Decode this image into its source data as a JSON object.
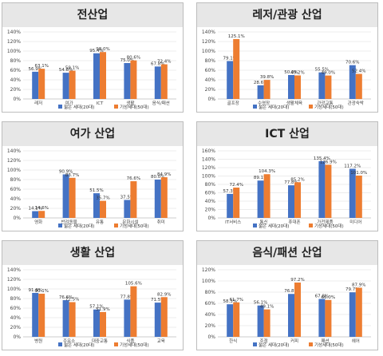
{
  "colors": {
    "series0": "#4472c4",
    "series1": "#ed7d31",
    "grid": "#d9d9d9",
    "axis": "#999999"
  },
  "legend": [
    "젊은 세대(20대)",
    "기성세대(50대)"
  ],
  "chart_data": [
    {
      "type": "bar",
      "title": "전산업",
      "categories": [
        "레저",
        "여가",
        "ICT",
        "생활",
        "음식/패션"
      ],
      "series": [
        {
          "name": "젊은 세대(20대)",
          "values": [
            56.9,
            54.8,
            95.4,
            75.0,
            67.8
          ],
          "labels": [
            "56.9%",
            "54.8%",
            "95.4%",
            "75.0%",
            "67.8%"
          ]
        },
        {
          "name": "기성세대(50대)",
          "values": [
            63.1,
            59.1,
            98.0,
            80.6,
            72.4
          ],
          "labels": [
            "63.1%",
            "59.1%",
            "98.0%",
            "80.6%",
            "72.4%"
          ]
        }
      ],
      "ylim": [
        0,
        140
      ],
      "yticks": [
        "0%",
        "20%",
        "40%",
        "60%",
        "80%",
        "100%",
        "120%",
        "140%"
      ]
    },
    {
      "type": "bar",
      "title": "레저/관광 산업",
      "categories": [
        "골프장",
        "수영장",
        "생활체육",
        "관광교통",
        "관광숙박"
      ],
      "series": [
        {
          "name": "젊은 세대(20대)",
          "values": [
            79.1,
            28.6,
            50.0,
            55.5,
            70.6
          ],
          "labels": [
            "79.1%",
            "28.6%",
            "50.0%",
            "55.5%",
            "70.6%"
          ]
        },
        {
          "name": "기성세대(50대)",
          "values": [
            125.1,
            39.8,
            49.2,
            49.0,
            52.4
          ],
          "labels": [
            "125.1%",
            "39.8%",
            "49.2%",
            "49.0%",
            "52.4%"
          ]
        }
      ],
      "ylim": [
        0,
        140
      ],
      "yticks": [
        "0%",
        "20%",
        "40%",
        "60%",
        "80%",
        "100%",
        "120%",
        "140%"
      ]
    },
    {
      "type": "bar",
      "title": "여가 산업",
      "categories": [
        "영화",
        "반려동물",
        "유통",
        "문화시설",
        "취미"
      ],
      "series": [
        {
          "name": "젊은 세대(20대)",
          "values": [
            14.1,
            90.9,
            51.5,
            37.5,
            80.0
          ],
          "labels": [
            "14.1%",
            "90.9%",
            "51.5%",
            "37.5%",
            "80.0%"
          ]
        },
        {
          "name": "기성세대(50대)",
          "values": [
            14.6,
            83.7,
            35.7,
            76.6,
            84.9
          ],
          "labels": [
            "14.6%",
            "83.7%",
            "35.7%",
            "76.6%",
            "84.9%"
          ]
        }
      ],
      "ylim": [
        0,
        140
      ],
      "yticks": [
        "0%",
        "20%",
        "40%",
        "60%",
        "80%",
        "100%",
        "120%",
        "140%"
      ]
    },
    {
      "type": "bar",
      "title": "ICT 산업",
      "categories": [
        "IT서비스",
        "통신",
        "휴대폰",
        "가전제품",
        "미디어"
      ],
      "series": [
        {
          "name": "젊은 세대(20대)",
          "values": [
            57.3,
            89.1,
            77.8,
            135.4,
            117.2
          ],
          "labels": [
            "57.3%",
            "89.1%",
            "77.8%",
            "135.4%",
            "117.2%"
          ]
        },
        {
          "name": "기성세대(50대)",
          "values": [
            72.4,
            104.3,
            85.2,
            126.9,
            101.0
          ],
          "labels": [
            "72.4%",
            "104.3%",
            "85.2%",
            "126.9%",
            "101.0%"
          ]
        }
      ],
      "ylim": [
        0,
        160
      ],
      "yticks": [
        "0%",
        "20%",
        "40%",
        "60%",
        "80%",
        "100%",
        "120%",
        "140%",
        "160%"
      ]
    },
    {
      "type": "bar",
      "title": "생활 산업",
      "categories": [
        "병원",
        "주유소",
        "대중교통",
        "식품",
        "교육"
      ],
      "series": [
        {
          "name": "젊은 세대(20대)",
          "values": [
            91.8,
            76.6,
            57.1,
            77.8,
            71.5
          ],
          "labels": [
            "91.8%",
            "76.6%",
            "57.1%",
            "77.8%",
            "71.5%"
          ]
        },
        {
          "name": "기성세대(50대)",
          "values": [
            90.1,
            72.5,
            51.9,
            105.6,
            82.9
          ],
          "labels": [
            "90.1%",
            "72.5%",
            "51.9%",
            "105.6%",
            "82.9%"
          ]
        }
      ],
      "ylim": [
        0,
        140
      ],
      "yticks": [
        "0%",
        "20%",
        "40%",
        "60%",
        "80%",
        "100%",
        "120%",
        "140%"
      ]
    },
    {
      "type": "bar",
      "title": "음식/패션 산업",
      "categories": [
        "한식",
        "주점",
        "커피",
        "패션",
        "헤어"
      ],
      "series": [
        {
          "name": "젊은 세대(20대)",
          "values": [
            58.3,
            56.1,
            76.8,
            67.8,
            79.7
          ],
          "labels": [
            "58.3%",
            "56.1%",
            "76.8%",
            "67.8%",
            "79.7%"
          ]
        },
        {
          "name": "기성세대(50대)",
          "values": [
            61.7,
            49.1,
            97.2,
            66.0,
            87.9
          ],
          "labels": [
            "61.7%",
            "49.1%",
            "97.2%",
            "66.0%",
            "87.9%"
          ]
        }
      ],
      "ylim": [
        0,
        120
      ],
      "yticks": [
        "0%",
        "20%",
        "40%",
        "60%",
        "80%",
        "100%",
        "120%"
      ]
    }
  ]
}
